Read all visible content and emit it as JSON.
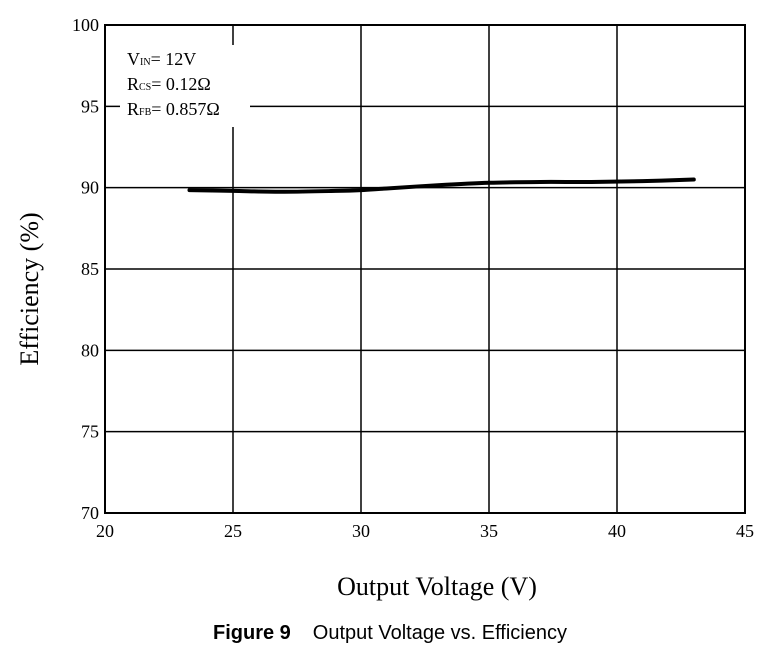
{
  "chart_data": {
    "type": "line",
    "xlabel": "Output Voltage (V)",
    "ylabel": "Efficiency (%)",
    "xlim": [
      20,
      45
    ],
    "ylim": [
      70,
      100
    ],
    "xticks": [
      20,
      25,
      30,
      35,
      40,
      45
    ],
    "yticks": [
      70,
      75,
      80,
      85,
      90,
      95,
      100
    ],
    "grid": true,
    "legend": "none",
    "line_color": "#000000",
    "annotation": [
      {
        "main": "V",
        "sub": "IN",
        "rest": "= 12V"
      },
      {
        "main": "R",
        "sub": "CS",
        "rest": "= 0.12Ω"
      },
      {
        "main": "R",
        "sub": "FB",
        "rest": "= 0.857Ω"
      }
    ],
    "series": [
      {
        "x": [
          23.3,
          25,
          27,
          29,
          30,
          31,
          33,
          35,
          37,
          39,
          41,
          43
        ],
        "y": [
          89.85,
          89.8,
          89.75,
          89.8,
          89.85,
          89.95,
          90.15,
          90.3,
          90.35,
          90.35,
          90.4,
          90.5
        ]
      }
    ]
  },
  "caption": {
    "figure_label": "Figure 9",
    "text": "Output Voltage vs. Efficiency"
  }
}
